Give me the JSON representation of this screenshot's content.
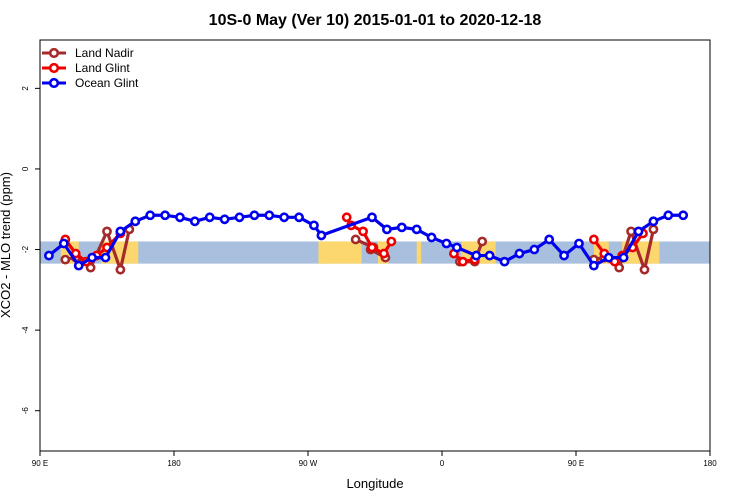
{
  "chart_data": {
    "type": "line",
    "title": "10S-0 May (Ver 10)   2015-01-01 to 2020-12-18",
    "xlabel": "Longitude",
    "ylabel": "XCO2 - MLO trend (ppm)",
    "xlim": [
      90,
      540
    ],
    "ylim": [
      -7,
      3.2
    ],
    "x_ticks": [
      {
        "value": 90,
        "label": "90 E"
      },
      {
        "value": 180,
        "label": "180"
      },
      {
        "value": 270,
        "label": "90 W"
      },
      {
        "value": 360,
        "label": "0"
      },
      {
        "value": 450,
        "label": "90 E"
      },
      {
        "value": 540,
        "label": "180"
      }
    ],
    "y_ticks": [
      {
        "value": -6,
        "label": "-6"
      },
      {
        "value": -4,
        "label": "-4"
      },
      {
        "value": -2,
        "label": "-2"
      },
      {
        "value": 0,
        "label": "0"
      },
      {
        "value": 2,
        "label": "2"
      }
    ],
    "latitude_band": {
      "y_low": -2.35,
      "y_high": -1.8,
      "color": "#a8bfde",
      "land_color": "#fcd76e"
    },
    "land_segments": [
      [
        104,
        116
      ],
      [
        131,
        156
      ],
      [
        277,
        280
      ],
      [
        278,
        306
      ],
      [
        317,
        324
      ],
      [
        343,
        346
      ],
      [
        373,
        396
      ],
      [
        462,
        472
      ],
      [
        481,
        506
      ]
    ],
    "legend": {
      "position": "top-left"
    },
    "series": [
      {
        "name": "Land Nadir",
        "color": "#a52a2a",
        "points": [
          [
            107,
            -2.25
          ],
          [
            114,
            -2.2
          ],
          [
            124,
            -2.45
          ],
          [
            135,
            -1.55
          ],
          [
            144,
            -2.5
          ],
          [
            150,
            -1.5
          ],
          [
            302,
            -1.75
          ],
          [
            314,
            -1.95
          ],
          [
            312,
            -2.0
          ],
          [
            322,
            -2.2
          ],
          [
            372,
            -2.3
          ],
          [
            382,
            -2.3
          ],
          [
            387,
            -1.8
          ],
          [
            462,
            -2.25
          ],
          [
            469,
            -2.2
          ],
          [
            479,
            -2.45
          ],
          [
            487,
            -1.55
          ],
          [
            496,
            -2.5
          ],
          [
            502,
            -1.5
          ]
        ]
      },
      {
        "name": "Land Glint",
        "color": "#ee0000",
        "points": [
          [
            107,
            -1.75
          ],
          [
            114,
            -2.1
          ],
          [
            121,
            -2.3
          ],
          [
            128,
            -2.15
          ],
          [
            135,
            -1.95
          ],
          [
            144,
            -1.6
          ],
          [
            296,
            -1.2
          ],
          [
            299,
            -1.4
          ],
          [
            307,
            -1.55
          ],
          [
            313,
            -1.95
          ],
          [
            321,
            -2.1
          ],
          [
            326,
            -1.8
          ],
          [
            368,
            -2.1
          ],
          [
            374,
            -2.3
          ],
          [
            382,
            -2.25
          ],
          [
            462,
            -1.75
          ],
          [
            469,
            -2.1
          ],
          [
            476,
            -2.3
          ],
          [
            481,
            -2.15
          ],
          [
            488,
            -1.95
          ],
          [
            495,
            -1.6
          ]
        ]
      },
      {
        "name": "Ocean Glint",
        "color": "#0000ee",
        "points": [
          [
            96,
            -2.15
          ],
          [
            106,
            -1.85
          ],
          [
            116,
            -2.4
          ],
          [
            125,
            -2.2
          ],
          [
            134,
            -2.2
          ],
          [
            144,
            -1.55
          ],
          [
            154,
            -1.3
          ],
          [
            164,
            -1.15
          ],
          [
            174,
            -1.15
          ],
          [
            184,
            -1.2
          ],
          [
            194,
            -1.3
          ],
          [
            204,
            -1.2
          ],
          [
            214,
            -1.25
          ],
          [
            224,
            -1.2
          ],
          [
            234,
            -1.15
          ],
          [
            244,
            -1.15
          ],
          [
            254,
            -1.2
          ],
          [
            264,
            -1.2
          ],
          [
            274,
            -1.4
          ],
          [
            279,
            -1.65
          ],
          [
            313,
            -1.2
          ],
          [
            323,
            -1.5
          ],
          [
            333,
            -1.45
          ],
          [
            343,
            -1.5
          ],
          [
            353,
            -1.7
          ],
          [
            363,
            -1.85
          ],
          [
            370,
            -1.95
          ],
          [
            383,
            -2.15
          ],
          [
            392,
            -2.15
          ],
          [
            402,
            -2.3
          ],
          [
            412,
            -2.1
          ],
          [
            422,
            -2.0
          ],
          [
            432,
            -1.75
          ],
          [
            442,
            -2.15
          ],
          [
            452,
            -1.85
          ],
          [
            462,
            -2.4
          ],
          [
            472,
            -2.2
          ],
          [
            482,
            -2.2
          ],
          [
            492,
            -1.55
          ],
          [
            502,
            -1.3
          ],
          [
            512,
            -1.15
          ],
          [
            522,
            -1.15
          ]
        ]
      }
    ]
  }
}
